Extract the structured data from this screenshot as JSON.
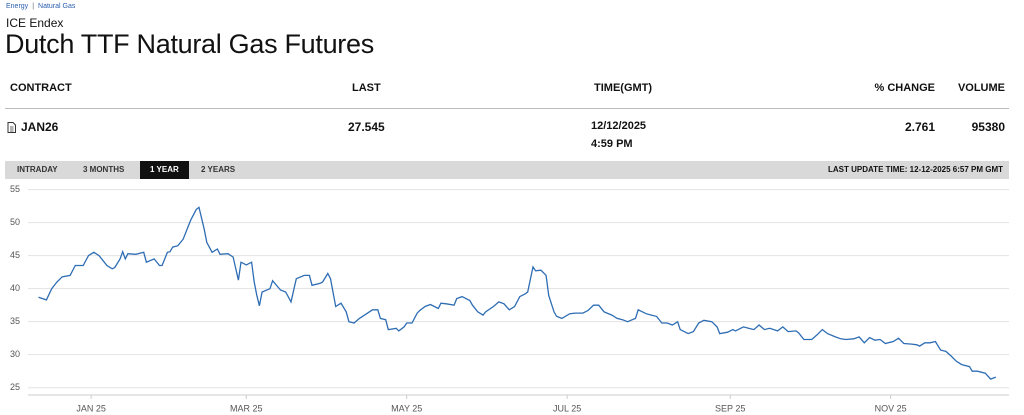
{
  "breadcrumb": [
    "Energy",
    "Natural Gas"
  ],
  "header": {
    "exchange": "ICE Endex",
    "title": "Dutch TTF Natural Gas Futures"
  },
  "table": {
    "columns": [
      "CONTRACT",
      "LAST",
      "TIME(GMT)",
      "% CHANGE",
      "VOLUME"
    ],
    "rows": [
      [
        "JAN26",
        27.545,
        [
          "12/12/2025",
          "4:59 PM"
        ],
        2.761,
        95380
      ]
    ]
  },
  "tabs": [
    "INTRADAY",
    "3 MONTHS",
    "1 YEAR",
    "2 YEARS"
  ],
  "active_tab": 2,
  "last_update": "LAST UPDATE TIME: 12-12-2025 6:57 PM GMT",
  "chart_data": {
    "type": "line",
    "color": "#2e6db4",
    "grid": true,
    "xlim": [
      -24,
      349
    ],
    "ylim": [
      24.5,
      56
    ],
    "xticks": [
      {
        "value": 0,
        "label": "JAN 25"
      },
      {
        "value": 59,
        "label": "MAR 25"
      },
      {
        "value": 120,
        "label": "MAY 25"
      },
      {
        "value": 181,
        "label": "JUL 25"
      },
      {
        "value": 243,
        "label": "SEP 25"
      },
      {
        "value": 304,
        "label": "NOV 25"
      }
    ],
    "yticks": [
      25,
      30,
      35,
      40,
      45,
      50,
      55
    ],
    "x": [
      -20,
      -17,
      -15,
      -13,
      -11,
      -8,
      -6,
      -3,
      -1,
      1,
      3,
      5,
      6,
      8,
      9,
      11,
      12,
      13,
      14,
      17,
      20,
      21,
      24,
      26,
      27,
      29,
      30,
      31,
      33,
      35,
      37,
      38,
      40,
      41,
      43,
      44,
      46,
      48,
      49,
      52,
      54,
      56,
      57,
      59,
      61,
      62,
      63,
      64,
      65,
      68,
      69,
      72,
      74,
      76,
      78,
      81,
      83,
      84,
      87,
      88,
      90,
      91,
      93,
      95,
      97,
      98,
      100,
      102,
      104,
      107,
      109,
      110,
      112,
      113,
      116,
      117,
      119,
      120,
      122,
      124,
      125,
      127,
      129,
      132,
      133,
      135,
      138,
      139,
      141,
      144,
      145,
      147,
      149,
      150,
      153,
      155,
      157,
      159,
      161,
      163,
      165,
      166,
      168,
      169,
      171,
      173,
      174,
      176,
      177,
      179,
      182,
      184,
      187,
      189,
      191,
      193,
      195,
      198,
      200,
      202,
      204,
      207,
      208,
      211,
      213,
      215,
      217,
      219,
      221,
      223,
      224,
      227,
      229,
      231,
      233,
      236,
      238,
      239,
      242,
      244,
      245,
      248,
      250,
      252,
      254,
      256,
      258,
      261,
      263,
      265,
      268,
      269,
      271,
      274,
      276,
      278,
      280,
      283,
      285,
      287,
      290,
      292,
      294,
      296,
      298,
      300,
      302,
      305,
      307,
      309,
      312,
      314,
      315,
      317,
      319,
      321,
      323,
      325,
      327,
      329,
      331,
      334,
      335,
      337,
      340,
      342,
      344
    ],
    "values": [
      38.7,
      38.3,
      40,
      41,
      41.8,
      42,
      43.5,
      43.5,
      45,
      45.5,
      45,
      44,
      43.5,
      43,
      43.2,
      44.5,
      45.6,
      44.5,
      45.3,
      45.2,
      45.5,
      44,
      44.5,
      43.5,
      43.5,
      45.5,
      45.6,
      46.3,
      46.5,
      47.5,
      49.5,
      50.5,
      52,
      52.3,
      49,
      47,
      45.5,
      46,
      45.2,
      45.3,
      44.8,
      41.3,
      44,
      43.6,
      44,
      41,
      39,
      37.4,
      39.5,
      40,
      41.2,
      39.8,
      39.5,
      38,
      41.5,
      42,
      42,
      40.5,
      40.8,
      41,
      42.3,
      41.5,
      37.3,
      37.8,
      36.5,
      35,
      34.8,
      35.5,
      36,
      36.8,
      36.8,
      35.5,
      35.3,
      33.8,
      34,
      33.6,
      34.2,
      34.8,
      34.8,
      36.3,
      36.7,
      37.3,
      37.6,
      37,
      37.8,
      37.7,
      37.5,
      38.5,
      38.8,
      38.2,
      37.5,
      36.5,
      36,
      36.5,
      37.3,
      38,
      37.7,
      36.8,
      37.3,
      38.8,
      39.2,
      39.5,
      43.3,
      42.7,
      42.8,
      42,
      39,
      36.5,
      35.8,
      35.5,
      36.2,
      36.3,
      36.3,
      36.7,
      37.5,
      37.5,
      36.5,
      36,
      35.5,
      35.3,
      35,
      35.5,
      36.8,
      36.2,
      36,
      35.8,
      34.8,
      34.8,
      34.5,
      35,
      33.8,
      33.2,
      33.5,
      34.8,
      35.2,
      35,
      34.2,
      33.2,
      33.4,
      33.8,
      33.6,
      34.2,
      34,
      33.8,
      34.5,
      33.8,
      34,
      33.6,
      34.2,
      33.5,
      33.6,
      33.3,
      32.3,
      32.3,
      33,
      33.8,
      33.2,
      32.7,
      32.4,
      32.3,
      32.4,
      32.7,
      31.8,
      32.6,
      32.2,
      32.3,
      31.7,
      32,
      32.5,
      31.7,
      31.6,
      31.5,
      31.3,
      31.8,
      31.8,
      32,
      30.7,
      30.5,
      29.8,
      29,
      28.5,
      28.2,
      27.5,
      27.5,
      27.2,
      26.3,
      26.6
    ]
  }
}
